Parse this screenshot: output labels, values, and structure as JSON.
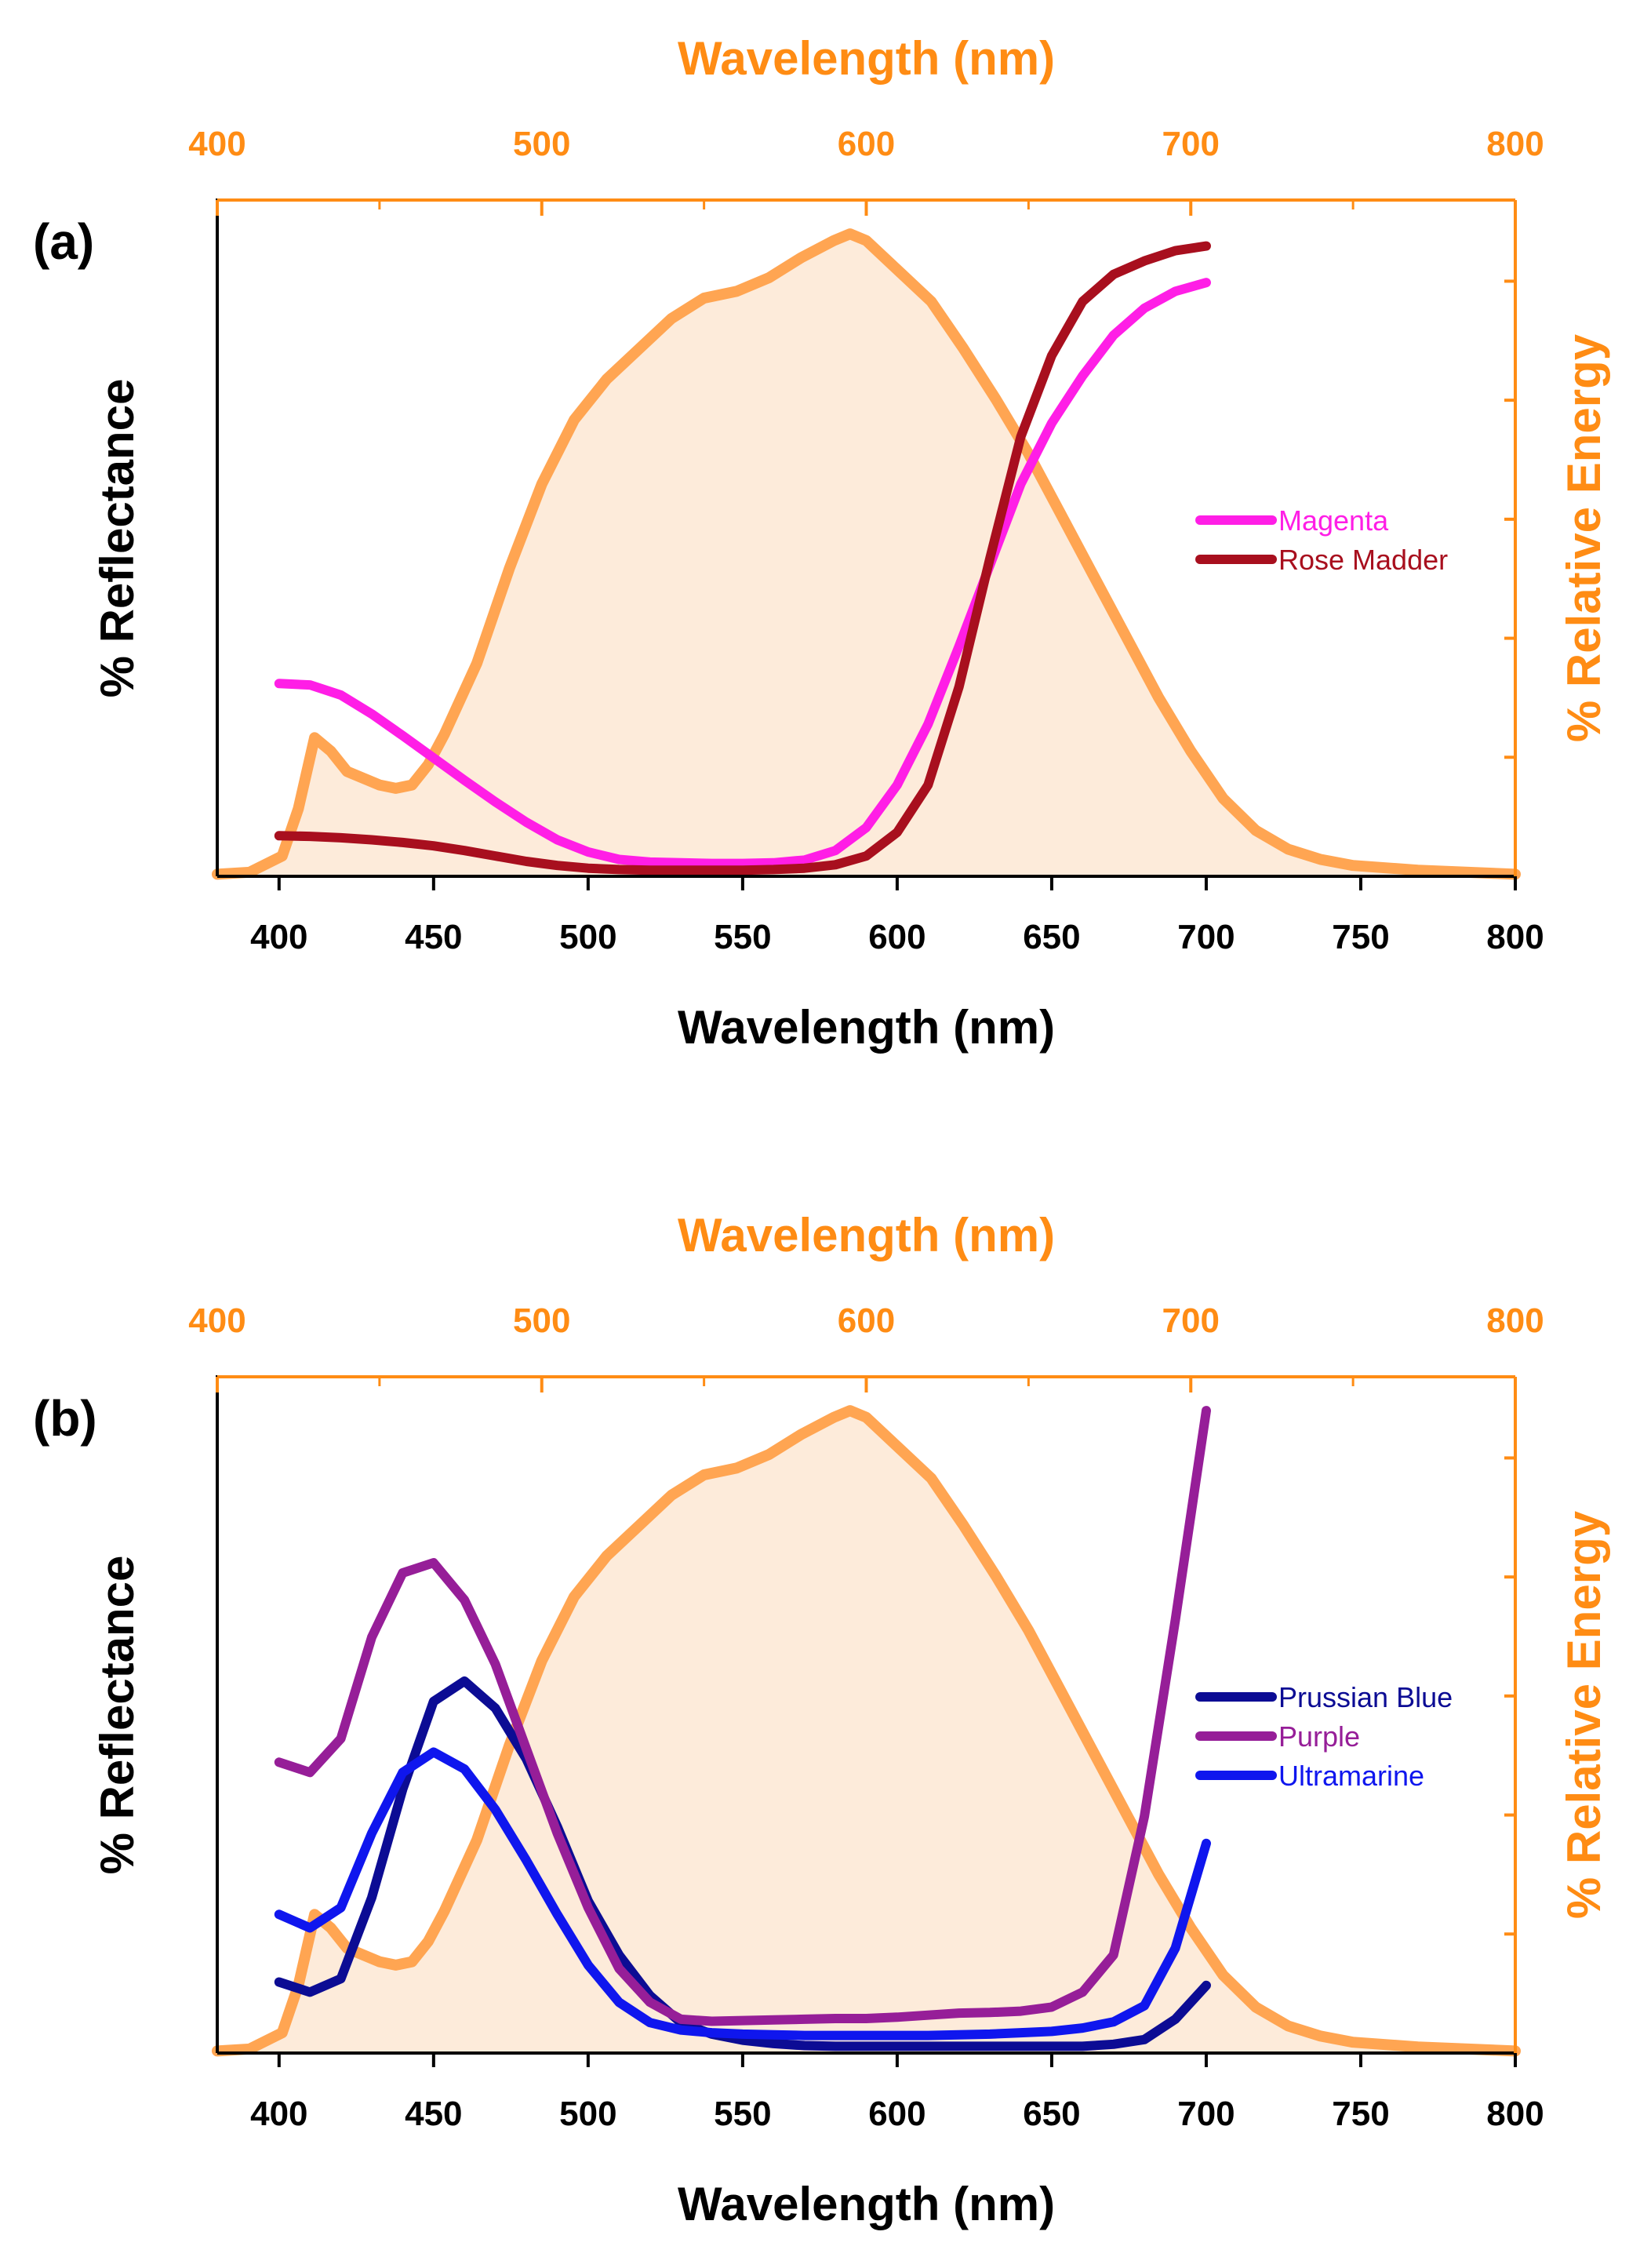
{
  "chart_data": [
    {
      "type": "line",
      "panel_label": "(a)",
      "xlabel": "Wavelength (nm)",
      "x2label": "Wavelength (nm)",
      "ylabel": "% Reflectance",
      "y2label": "% Relative Energy",
      "xlim": [
        380,
        800
      ],
      "x_ticks": [
        400,
        450,
        500,
        550,
        600,
        650,
        700,
        750,
        800
      ],
      "x2lim": [
        400,
        800
      ],
      "x2_ticks": [
        400,
        500,
        600,
        700,
        800
      ],
      "ylim": [
        0,
        100
      ],
      "y2lim": [
        0,
        100
      ],
      "legend_position": "center-right",
      "series": [
        {
          "name": "Magenta",
          "color": "#ff1ee6",
          "x": [
            400,
            410,
            420,
            430,
            440,
            450,
            460,
            470,
            480,
            490,
            500,
            510,
            520,
            530,
            540,
            550,
            560,
            570,
            580,
            590,
            600,
            610,
            620,
            630,
            640,
            650,
            660,
            670,
            680,
            690,
            700
          ],
          "values": [
            28.5,
            28.3,
            26.8,
            24.0,
            20.8,
            17.5,
            14.2,
            11.0,
            8.0,
            5.4,
            3.6,
            2.5,
            2.1,
            2.0,
            1.9,
            1.9,
            2.0,
            2.4,
            3.8,
            7.2,
            13.5,
            22.5,
            34.0,
            46.0,
            58.0,
            67.0,
            74.0,
            80.0,
            84.0,
            86.5,
            87.8
          ]
        },
        {
          "name": "Rose Madder",
          "color": "#a80f1e",
          "x": [
            400,
            410,
            420,
            430,
            440,
            450,
            460,
            470,
            480,
            490,
            500,
            510,
            520,
            530,
            540,
            550,
            560,
            570,
            580,
            590,
            600,
            610,
            620,
            630,
            640,
            650,
            660,
            670,
            680,
            690,
            700
          ],
          "values": [
            6.0,
            5.9,
            5.7,
            5.4,
            5.0,
            4.5,
            3.8,
            3.0,
            2.2,
            1.6,
            1.2,
            1.0,
            0.9,
            0.9,
            0.9,
            0.9,
            1.0,
            1.2,
            1.7,
            3.0,
            6.5,
            13.5,
            28.0,
            47.0,
            65.0,
            77.0,
            85.0,
            89.0,
            91.0,
            92.5,
            93.2
          ]
        }
      ],
      "illuminant": {
        "name": "% Relative Energy",
        "color": "#ffa552",
        "fill": "#fdebda",
        "x": [
          400,
          410,
          420,
          425,
          430,
          435,
          440,
          445,
          450,
          455,
          460,
          465,
          470,
          480,
          490,
          500,
          510,
          520,
          530,
          540,
          550,
          560,
          570,
          580,
          590,
          595,
          600,
          610,
          620,
          630,
          640,
          650,
          660,
          670,
          680,
          690,
          700,
          710,
          720,
          730,
          740,
          750,
          770,
          800
        ],
        "values": [
          0.3,
          0.6,
          3.0,
          10.0,
          20.5,
          18.5,
          15.5,
          14.5,
          13.5,
          13.0,
          13.5,
          16.5,
          21.0,
          31.5,
          45.5,
          58.0,
          67.5,
          73.5,
          78.0,
          82.5,
          85.5,
          86.5,
          88.5,
          91.5,
          94.0,
          95.0,
          94.0,
          89.5,
          85.0,
          78.0,
          70.5,
          62.5,
          53.5,
          44.5,
          35.5,
          26.5,
          18.5,
          11.5,
          6.8,
          4.0,
          2.5,
          1.6,
          0.9,
          0.3
        ]
      }
    },
    {
      "type": "line",
      "panel_label": "(b)",
      "xlabel": "Wavelength (nm)",
      "x2label": "Wavelength (nm)",
      "ylabel": "% Reflectance",
      "y2label": "% Relative Energy",
      "xlim": [
        380,
        800
      ],
      "x_ticks": [
        400,
        450,
        500,
        550,
        600,
        650,
        700,
        750,
        800
      ],
      "x2lim": [
        400,
        800
      ],
      "x2_ticks": [
        400,
        500,
        600,
        700,
        800
      ],
      "ylim": [
        0,
        100
      ],
      "y2lim": [
        0,
        100
      ],
      "legend_position": "center-right",
      "series": [
        {
          "name": "Prussian Blue",
          "color": "#0c0c94",
          "x": [
            400,
            410,
            420,
            430,
            440,
            450,
            460,
            470,
            480,
            490,
            500,
            510,
            520,
            530,
            540,
            550,
            560,
            570,
            580,
            590,
            600,
            610,
            620,
            630,
            640,
            650,
            660,
            670,
            680,
            690,
            700
          ],
          "values": [
            10.5,
            9.0,
            11.0,
            23.0,
            39.0,
            52.0,
            55.0,
            51.0,
            43.5,
            33.5,
            22.5,
            14.5,
            8.5,
            4.5,
            2.8,
            1.9,
            1.4,
            1.1,
            1.0,
            1.0,
            1.0,
            1.0,
            1.0,
            1.0,
            1.0,
            1.0,
            1.0,
            1.3,
            2.0,
            5.0,
            10.0
          ]
        },
        {
          "name": "Purple",
          "color": "#961e98",
          "x": [
            400,
            410,
            420,
            430,
            440,
            450,
            460,
            470,
            480,
            490,
            500,
            510,
            520,
            530,
            540,
            550,
            560,
            570,
            580,
            590,
            600,
            610,
            620,
            630,
            640,
            650,
            660,
            670,
            680,
            690,
            700
          ],
          "values": [
            43.0,
            41.5,
            46.5,
            61.5,
            71.0,
            72.5,
            67.0,
            57.5,
            45.0,
            32.5,
            21.5,
            12.5,
            7.5,
            5.0,
            4.7,
            4.8,
            4.9,
            5.0,
            5.1,
            5.1,
            5.3,
            5.6,
            5.9,
            6.0,
            6.2,
            6.8,
            9.0,
            14.5,
            35.0,
            64.0,
            95.0
          ]
        },
        {
          "name": "Ultramarine",
          "color": "#0f16ee",
          "x": [
            400,
            410,
            420,
            430,
            440,
            450,
            460,
            470,
            480,
            490,
            500,
            510,
            520,
            530,
            540,
            550,
            560,
            570,
            580,
            590,
            600,
            610,
            620,
            630,
            640,
            650,
            660,
            670,
            680,
            690,
            700
          ],
          "values": [
            20.5,
            18.5,
            21.5,
            32.5,
            41.5,
            44.5,
            42.0,
            36.0,
            28.5,
            20.5,
            13.0,
            7.5,
            4.5,
            3.4,
            3.0,
            2.8,
            2.7,
            2.6,
            2.6,
            2.6,
            2.6,
            2.6,
            2.7,
            2.8,
            3.0,
            3.2,
            3.7,
            4.6,
            7.0,
            15.5,
            31.0
          ]
        }
      ],
      "illuminant": {
        "name": "% Relative Energy",
        "color": "#ffa552",
        "fill": "#fdebda",
        "x": [
          400,
          410,
          420,
          425,
          430,
          435,
          440,
          445,
          450,
          455,
          460,
          465,
          470,
          480,
          490,
          500,
          510,
          520,
          530,
          540,
          550,
          560,
          570,
          580,
          590,
          595,
          600,
          610,
          620,
          630,
          640,
          650,
          660,
          670,
          680,
          690,
          700,
          710,
          720,
          730,
          740,
          750,
          770,
          800
        ],
        "values": [
          0.3,
          0.6,
          3.0,
          10.0,
          20.5,
          18.5,
          15.5,
          14.5,
          13.5,
          13.0,
          13.5,
          16.5,
          21.0,
          31.5,
          45.5,
          58.0,
          67.5,
          73.5,
          78.0,
          82.5,
          85.5,
          86.5,
          88.5,
          91.5,
          94.0,
          95.0,
          94.0,
          89.5,
          85.0,
          78.0,
          70.5,
          62.5,
          53.5,
          44.5,
          35.5,
          26.5,
          18.5,
          11.5,
          6.8,
          4.0,
          2.5,
          1.6,
          0.9,
          0.3
        ]
      }
    }
  ]
}
